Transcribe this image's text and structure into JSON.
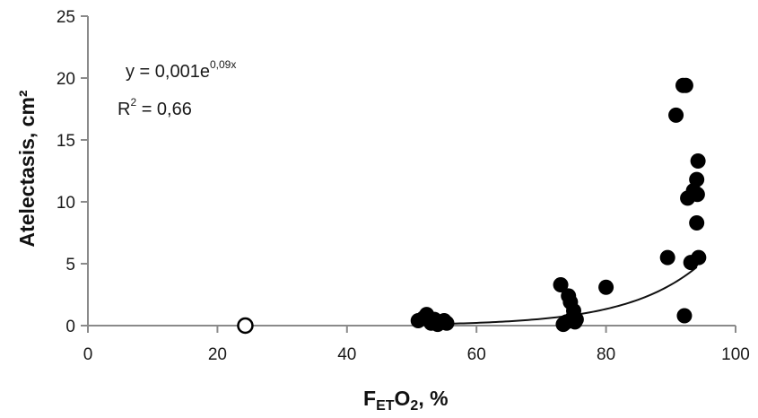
{
  "chart_data": {
    "type": "scatter",
    "xlabel_main": "F",
    "xlabel_sub": "ET",
    "xlabel_tail": "O",
    "xlabel_sub2": "2",
    "xlabel_unit": ", %",
    "ylabel": "Atelectasis, cm²",
    "xlim": [
      0,
      100
    ],
    "ylim": [
      0,
      25
    ],
    "xticks": [
      0,
      20,
      40,
      60,
      80,
      100
    ],
    "yticks": [
      0,
      5,
      10,
      15,
      20,
      25
    ],
    "xtick_labels": [
      "0",
      "20",
      "40",
      "60",
      "80",
      "100"
    ],
    "ytick_labels": [
      "0",
      "5",
      "10",
      "15",
      "20",
      "25"
    ],
    "grid": false,
    "equation": {
      "prefix": "y = 0,001e",
      "exponent": "0,09x",
      "r_label": "R",
      "r_sup": "2",
      "r_value": " = 0,66"
    },
    "fit": {
      "a": 0.001,
      "b": 0.09,
      "x_from": 55,
      "x_to": 94
    },
    "series": [
      {
        "marker": "filled",
        "color": "#000000",
        "points": [
          [
            51,
            0.4
          ],
          [
            51.8,
            0.6
          ],
          [
            52.3,
            0.9
          ],
          [
            53,
            0.2
          ],
          [
            53.5,
            0.5
          ],
          [
            54,
            0.1
          ],
          [
            54.5,
            0.3
          ],
          [
            55,
            0.4
          ],
          [
            55.4,
            0.2
          ],
          [
            73,
            3.3
          ],
          [
            73.4,
            0.1
          ],
          [
            73.9,
            0.3
          ],
          [
            74.2,
            2.4
          ],
          [
            74.5,
            1.9
          ],
          [
            74.8,
            0.6
          ],
          [
            75,
            1.2
          ],
          [
            75.2,
            0.3
          ],
          [
            75.4,
            0.5
          ],
          [
            80,
            3.1
          ],
          [
            89.5,
            5.5
          ],
          [
            90.8,
            17.0
          ],
          [
            91.9,
            19.4
          ],
          [
            92.3,
            19.4
          ],
          [
            92.1,
            0.8
          ],
          [
            92.6,
            10.3
          ],
          [
            93.1,
            5.1
          ],
          [
            93.5,
            10.9
          ],
          [
            94,
            11.8
          ],
          [
            94.2,
            13.3
          ],
          [
            94.1,
            10.6
          ],
          [
            94,
            8.3
          ],
          [
            94.3,
            5.5
          ]
        ]
      },
      {
        "marker": "open",
        "color": "#000000",
        "points": [
          [
            24.3,
            0
          ]
        ]
      }
    ]
  }
}
